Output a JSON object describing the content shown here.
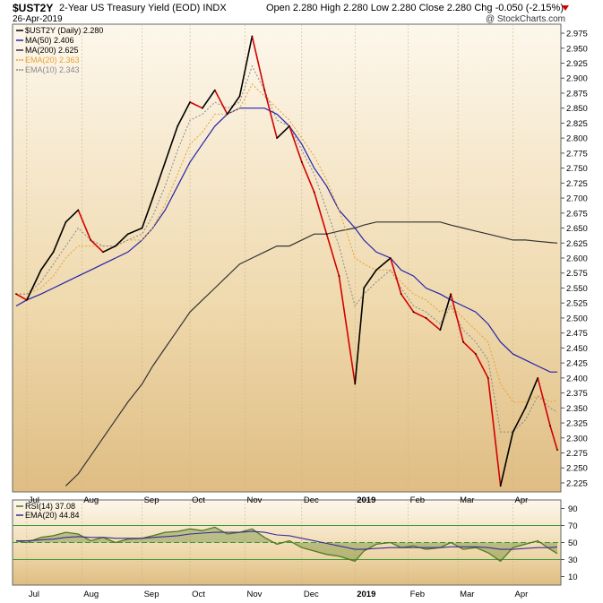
{
  "header": {
    "symbol": "$UST2Y",
    "name": "2-Year US Treasury Yield (EOD)",
    "exchange": "INDX",
    "date": "26-Apr-2019",
    "watermark": "@ StockCharts.com",
    "ohlc": "Open 2.280  High 2.280  Low 2.280  Close 2.280  Chg -0.050 (-2.15%)"
  },
  "colors": {
    "price_up": "#000000",
    "price_down": "#d40000",
    "ma50": "#2222aa",
    "ma200": "#333333",
    "ema20": "#e8a030",
    "ema10": "#888888",
    "rsi": "#4f7a1c",
    "rsi_ema": "#3a2a9a",
    "rsi_band": "#3f9a3f"
  },
  "chart_data": [
    {
      "type": "line",
      "panel": "price",
      "ylim": [
        2.21,
        2.99
      ],
      "yticks": [
        "2.975",
        "2.950",
        "2.925",
        "2.900",
        "2.875",
        "2.850",
        "2.825",
        "2.800",
        "2.775",
        "2.750",
        "2.725",
        "2.700",
        "2.675",
        "2.650",
        "2.625",
        "2.600",
        "2.575",
        "2.550",
        "2.525",
        "2.500",
        "2.475",
        "2.450",
        "2.425",
        "2.400",
        "2.375",
        "2.350",
        "2.325",
        "2.300",
        "2.275",
        "2.250",
        "2.225"
      ],
      "xticks": [
        "Jul",
        "Aug",
        "Sep",
        "Oct",
        "Nov",
        "Dec",
        "2019",
        "Feb",
        "Mar",
        "Apr"
      ],
      "legend": [
        {
          "label": "$UST2Y (Daily) 2.280"
        },
        {
          "label": "MA(50) 2.406"
        },
        {
          "label": "MA(200) 2.625"
        },
        {
          "label": "EMA(20) 2.363"
        },
        {
          "label": "EMA(10) 2.343"
        }
      ],
      "x": [
        "2018-06-25",
        "2018-07-01",
        "2018-07-09",
        "2018-07-16",
        "2018-07-23",
        "2018-07-30",
        "2018-08-06",
        "2018-08-13",
        "2018-08-20",
        "2018-08-27",
        "2018-09-04",
        "2018-09-10",
        "2018-09-17",
        "2018-09-24",
        "2018-10-01",
        "2018-10-08",
        "2018-10-15",
        "2018-10-22",
        "2018-10-29",
        "2018-11-05",
        "2018-11-12",
        "2018-11-19",
        "2018-11-26",
        "2018-12-03",
        "2018-12-10",
        "2018-12-17",
        "2018-12-24",
        "2019-01-02",
        "2019-01-07",
        "2019-01-14",
        "2019-01-22",
        "2019-01-28",
        "2019-02-04",
        "2019-02-11",
        "2019-02-19",
        "2019-02-25",
        "2019-03-04",
        "2019-03-11",
        "2019-03-18",
        "2019-03-25",
        "2019-04-01",
        "2019-04-08",
        "2019-04-15",
        "2019-04-22",
        "2019-04-26"
      ],
      "series": [
        {
          "name": "$UST2Y (Daily)",
          "values": [
            2.54,
            2.53,
            2.58,
            2.61,
            2.66,
            2.68,
            2.63,
            2.61,
            2.62,
            2.64,
            2.65,
            2.7,
            2.76,
            2.82,
            2.86,
            2.85,
            2.88,
            2.84,
            2.87,
            2.97,
            2.88,
            2.8,
            2.82,
            2.76,
            2.71,
            2.64,
            2.57,
            2.39,
            2.55,
            2.58,
            2.6,
            2.54,
            2.51,
            2.5,
            2.48,
            2.54,
            2.46,
            2.44,
            2.4,
            2.22,
            2.31,
            2.35,
            2.4,
            2.32,
            2.28
          ]
        },
        {
          "name": "MA(50)",
          "values": [
            2.52,
            2.53,
            2.54,
            2.55,
            2.56,
            2.57,
            2.58,
            2.59,
            2.6,
            2.61,
            2.63,
            2.65,
            2.68,
            2.72,
            2.76,
            2.79,
            2.82,
            2.84,
            2.85,
            2.85,
            2.85,
            2.84,
            2.82,
            2.79,
            2.75,
            2.72,
            2.68,
            2.65,
            2.63,
            2.61,
            2.6,
            2.58,
            2.57,
            2.55,
            2.54,
            2.53,
            2.52,
            2.51,
            2.49,
            2.46,
            2.44,
            2.43,
            2.42,
            2.41,
            2.41
          ]
        },
        {
          "name": "MA(200)",
          "values": [
            null,
            null,
            null,
            null,
            2.22,
            2.24,
            2.27,
            2.3,
            2.33,
            2.36,
            2.39,
            2.42,
            2.45,
            2.48,
            2.51,
            2.53,
            2.55,
            2.57,
            2.59,
            2.6,
            2.61,
            2.62,
            2.62,
            2.63,
            2.64,
            2.64,
            2.645,
            2.65,
            2.655,
            2.66,
            2.66,
            2.66,
            2.66,
            2.66,
            2.66,
            2.655,
            2.65,
            2.645,
            2.64,
            2.635,
            2.63,
            2.63,
            2.628,
            2.626,
            2.625
          ]
        },
        {
          "name": "EMA(20)",
          "values": [
            2.54,
            2.54,
            2.55,
            2.57,
            2.6,
            2.62,
            2.62,
            2.62,
            2.62,
            2.63,
            2.63,
            2.65,
            2.69,
            2.74,
            2.79,
            2.81,
            2.84,
            2.84,
            2.85,
            2.89,
            2.87,
            2.85,
            2.83,
            2.8,
            2.77,
            2.73,
            2.68,
            2.6,
            2.59,
            2.58,
            2.58,
            2.56,
            2.54,
            2.53,
            2.51,
            2.52,
            2.5,
            2.48,
            2.46,
            2.39,
            2.36,
            2.36,
            2.37,
            2.36,
            2.363
          ]
        },
        {
          "name": "EMA(10)",
          "values": [
            2.54,
            2.54,
            2.56,
            2.59,
            2.62,
            2.65,
            2.63,
            2.62,
            2.62,
            2.63,
            2.64,
            2.67,
            2.72,
            2.78,
            2.83,
            2.84,
            2.86,
            2.85,
            2.86,
            2.92,
            2.88,
            2.83,
            2.82,
            2.78,
            2.74,
            2.68,
            2.62,
            2.52,
            2.54,
            2.56,
            2.58,
            2.55,
            2.52,
            2.51,
            2.49,
            2.52,
            2.48,
            2.46,
            2.43,
            2.31,
            2.31,
            2.33,
            2.37,
            2.35,
            2.343
          ]
        }
      ]
    },
    {
      "type": "line",
      "panel": "rsi",
      "ylim": [
        0,
        100
      ],
      "yticks": [
        "90",
        "70",
        "50",
        "30",
        "10"
      ],
      "bands": [
        30,
        70
      ],
      "midline": 50,
      "xticks": [
        "Jul",
        "Aug",
        "Sep",
        "Oct",
        "Nov",
        "Dec",
        "2019",
        "Feb",
        "Mar",
        "Apr"
      ],
      "legend": [
        {
          "label": "RSI(14) 37.08"
        },
        {
          "label": "EMA(20) 44.84"
        }
      ],
      "x": [
        "2018-06-25",
        "2018-07-01",
        "2018-07-09",
        "2018-07-16",
        "2018-07-23",
        "2018-07-30",
        "2018-08-06",
        "2018-08-13",
        "2018-08-20",
        "2018-08-27",
        "2018-09-04",
        "2018-09-10",
        "2018-09-17",
        "2018-09-24",
        "2018-10-01",
        "2018-10-08",
        "2018-10-15",
        "2018-10-22",
        "2018-10-29",
        "2018-11-05",
        "2018-11-12",
        "2018-11-19",
        "2018-11-26",
        "2018-12-03",
        "2018-12-10",
        "2018-12-17",
        "2018-12-24",
        "2019-01-02",
        "2019-01-07",
        "2019-01-14",
        "2019-01-22",
        "2019-01-28",
        "2019-02-04",
        "2019-02-11",
        "2019-02-19",
        "2019-02-25",
        "2019-03-04",
        "2019-03-11",
        "2019-03-18",
        "2019-03-25",
        "2019-04-01",
        "2019-04-08",
        "2019-04-15",
        "2019-04-22",
        "2019-04-26"
      ],
      "series": [
        {
          "name": "RSI(14)",
          "values": [
            52,
            50,
            56,
            58,
            62,
            60,
            52,
            56,
            50,
            54,
            55,
            58,
            62,
            63,
            66,
            64,
            68,
            60,
            62,
            66,
            56,
            48,
            52,
            44,
            40,
            36,
            34,
            28,
            40,
            48,
            50,
            44,
            46,
            42,
            44,
            50,
            42,
            44,
            38,
            28,
            44,
            48,
            52,
            42,
            37.08
          ]
        },
        {
          "name": "EMA(20)",
          "values": [
            52,
            52,
            53,
            54,
            56,
            57,
            56,
            56,
            55,
            55,
            55,
            56,
            57,
            58,
            60,
            61,
            62,
            62,
            62,
            63,
            62,
            59,
            58,
            55,
            52,
            49,
            46,
            42,
            42,
            43,
            44,
            44,
            44,
            44,
            44,
            45,
            45,
            45,
            44,
            42,
            42,
            43,
            44,
            44,
            44.84
          ]
        }
      ]
    }
  ]
}
